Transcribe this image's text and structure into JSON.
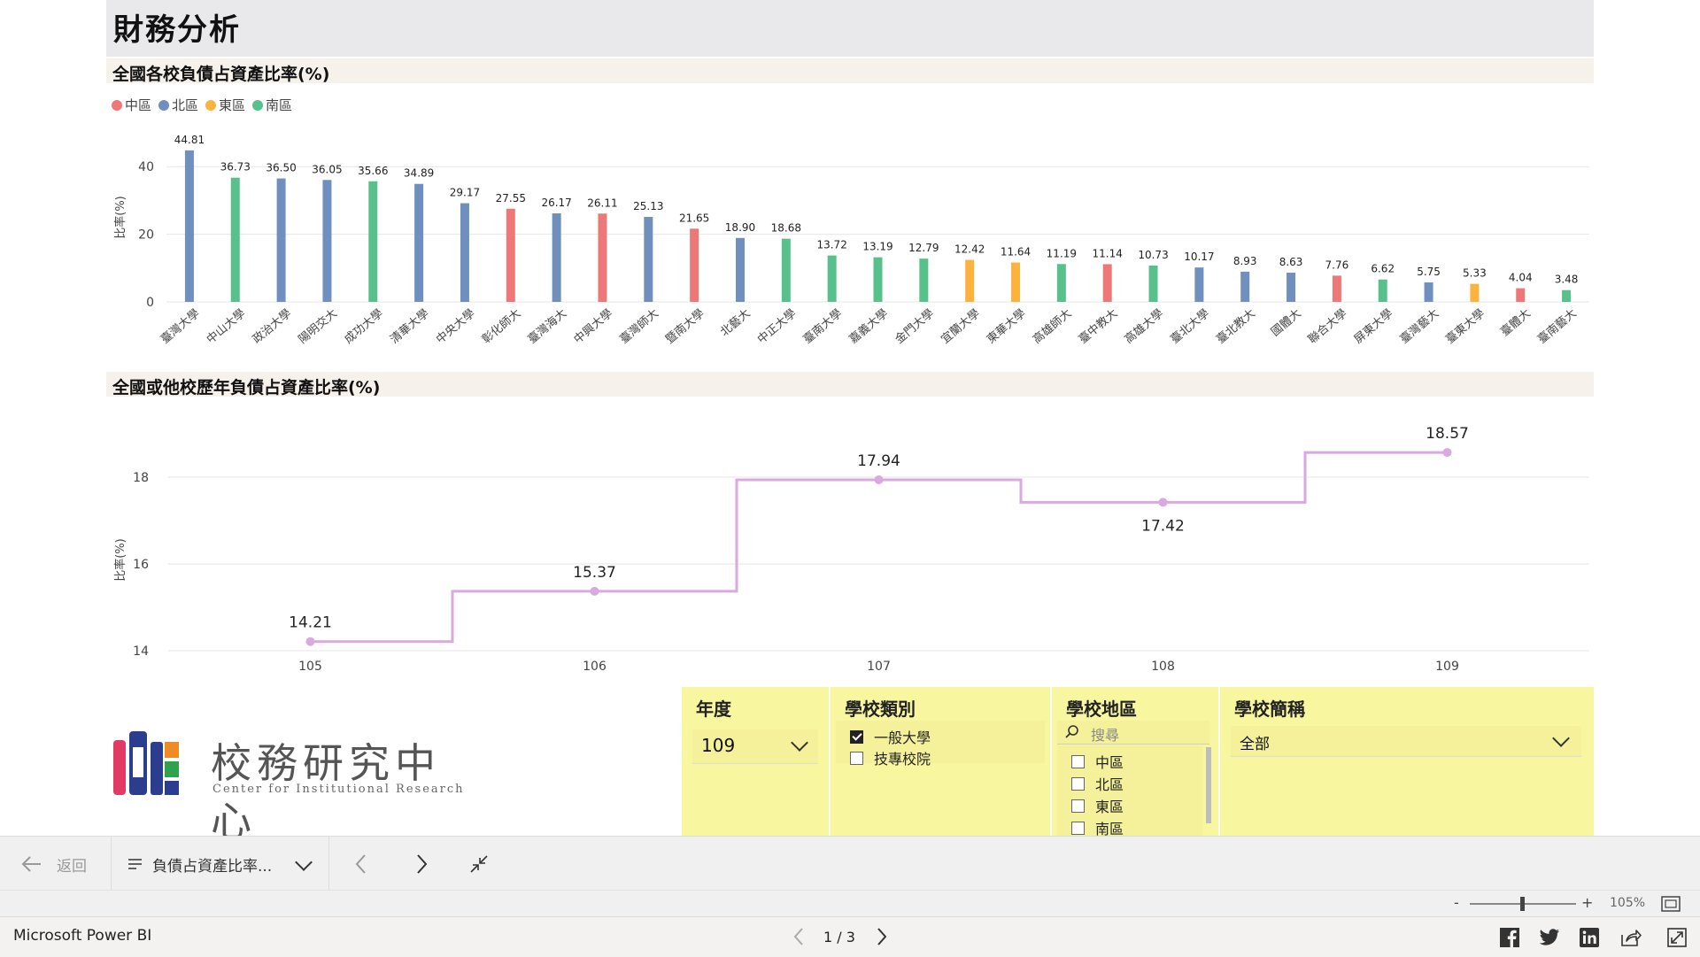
{
  "report": {
    "title": "財務分析"
  },
  "bar_section": {
    "title": "全國各校負債占資產比率(%)"
  },
  "line_section": {
    "title": "全國或他校歷年負債占資產比率(%)"
  },
  "legend": [
    {
      "label": "中區",
      "color": "#ee7777"
    },
    {
      "label": "北區",
      "color": "#6f8fbf"
    },
    {
      "label": "東區",
      "color": "#fbb33e"
    },
    {
      "label": "南區",
      "color": "#58c08a"
    }
  ],
  "chart_data": [
    {
      "type": "bar",
      "title": "全國各校負債占資產比率(%)",
      "ylabel": "比率(%)",
      "xlabel": "",
      "ylim": [
        0,
        50
      ],
      "yticks": [
        0,
        20,
        40
      ],
      "grid": true,
      "legend_position": "top-left",
      "categories": [
        "臺灣大學",
        "中山大學",
        "政治大學",
        "陽明交大",
        "成功大學",
        "清華大學",
        "中央大學",
        "彰化師大",
        "臺灣海大",
        "中興大學",
        "臺灣師大",
        "暨南大學",
        "北藝大",
        "中正大學",
        "臺南大學",
        "嘉義大學",
        "金門大學",
        "宜蘭大學",
        "東華大學",
        "高雄師大",
        "臺中教大",
        "高雄大學",
        "臺北大學",
        "臺北教大",
        "國體大",
        "聯合大學",
        "屏東大學",
        "臺灣藝大",
        "臺東大學",
        "臺體大",
        "臺南藝大"
      ],
      "bars": [
        {
          "category": "臺灣大學",
          "region": "北區",
          "value": 44.81,
          "label": "44.81"
        },
        {
          "category": "中山大學",
          "region": "南區",
          "value": 36.73,
          "label": "36.73"
        },
        {
          "category": "政治大學",
          "region": "北區",
          "value": 36.5,
          "label": "36.50"
        },
        {
          "category": "陽明交大",
          "region": "北區",
          "value": 36.05,
          "label": "36.05"
        },
        {
          "category": "成功大學",
          "region": "南區",
          "value": 35.66,
          "label": "35.66"
        },
        {
          "category": "清華大學",
          "region": "北區",
          "value": 34.89,
          "label": "34.89"
        },
        {
          "category": "中央大學",
          "region": "北區",
          "value": 29.17,
          "label": "29.17"
        },
        {
          "category": "彰化師大",
          "region": "中區",
          "value": 27.55,
          "label": "27.55"
        },
        {
          "category": "臺灣海大",
          "region": "北區",
          "value": 26.17,
          "label": "26.17"
        },
        {
          "category": "中興大學",
          "region": "中區",
          "value": 26.11,
          "label": "26.11"
        },
        {
          "category": "臺灣師大",
          "region": "北區",
          "value": 25.13,
          "label": "25.13"
        },
        {
          "category": "暨南大學",
          "region": "中區",
          "value": 21.65,
          "label": "21.65"
        },
        {
          "category": "北藝大",
          "region": "北區",
          "value": 18.9,
          "label": "18.90"
        },
        {
          "category": "中正大學",
          "region": "南區",
          "value": 18.68,
          "label": "18.68"
        },
        {
          "category": "臺南大學",
          "region": "南區",
          "value": 13.72,
          "label": "13.72"
        },
        {
          "category": "嘉義大學",
          "region": "南區",
          "value": 13.19,
          "label": "13.19"
        },
        {
          "category": "金門大學",
          "region": "南區",
          "value": 12.79,
          "label": "12.79"
        },
        {
          "category": "宜蘭大學",
          "region": "東區",
          "value": 12.42,
          "label": "12.42"
        },
        {
          "category": "東華大學",
          "region": "東區",
          "value": 11.64,
          "label": "11.64"
        },
        {
          "category": "高雄師大",
          "region": "南區",
          "value": 11.19,
          "label": "11.19"
        },
        {
          "category": "臺中教大",
          "region": "中區",
          "value": 11.14,
          "label": "11.14"
        },
        {
          "category": "高雄大學",
          "region": "南區",
          "value": 10.73,
          "label": "10.73"
        },
        {
          "category": "臺北大學",
          "region": "北區",
          "value": 10.17,
          "label": "10.17"
        },
        {
          "category": "臺北教大",
          "region": "北區",
          "value": 8.93,
          "label": "8.93"
        },
        {
          "category": "國體大",
          "region": "北區",
          "value": 8.63,
          "label": "8.63"
        },
        {
          "category": "聯合大學",
          "region": "中區",
          "value": 7.76,
          "label": "7.76"
        },
        {
          "category": "屏東大學",
          "region": "南區",
          "value": 6.62,
          "label": "6.62"
        },
        {
          "category": "臺灣藝大",
          "region": "北區",
          "value": 5.75,
          "label": "5.75"
        },
        {
          "category": "臺東大學",
          "region": "東區",
          "value": 5.33,
          "label": "5.33"
        },
        {
          "category": "臺體大",
          "region": "中區",
          "value": 4.04,
          "label": "4.04"
        },
        {
          "category": "臺南藝大",
          "region": "南區",
          "value": 3.48,
          "label": "3.48"
        }
      ]
    },
    {
      "type": "line",
      "title": "全國或他校歷年負債占資產比率(%)",
      "ylabel": "比率(%)",
      "xlabel": "",
      "line_shape": "step",
      "ylim": [
        14,
        19
      ],
      "yticks": [
        14,
        16,
        18
      ],
      "grid": true,
      "x": [
        "105",
        "106",
        "107",
        "108",
        "109"
      ],
      "series": [
        {
          "values": [
            14.21,
            15.37,
            17.94,
            17.42,
            18.57
          ],
          "color": "#d9a9e0"
        }
      ]
    }
  ],
  "slicers": {
    "year": {
      "title": "年度",
      "value": "109"
    },
    "school_type": {
      "title": "學校類別",
      "options": [
        {
          "label": "一般大學",
          "checked": true
        },
        {
          "label": "技專校院",
          "checked": false
        }
      ]
    },
    "school_region": {
      "title": "學校地區",
      "search_placeholder": "搜尋",
      "options": [
        {
          "label": "中區",
          "checked": false
        },
        {
          "label": "北區",
          "checked": false
        },
        {
          "label": "東區",
          "checked": false
        },
        {
          "label": "南區",
          "checked": false
        }
      ]
    },
    "school_name": {
      "title": "學校簡稱",
      "value": "全部"
    }
  },
  "logo": {
    "title": "校務研究中心",
    "subtitle": "Center for Institutional Research"
  },
  "nav": {
    "back_label": "返回",
    "page_name": "負債占資產比率..."
  },
  "zoom": {
    "minus": "-",
    "plus": "+",
    "level": "105%"
  },
  "footer": {
    "brand": "Microsoft Power BI",
    "pager": "1 / 3"
  }
}
